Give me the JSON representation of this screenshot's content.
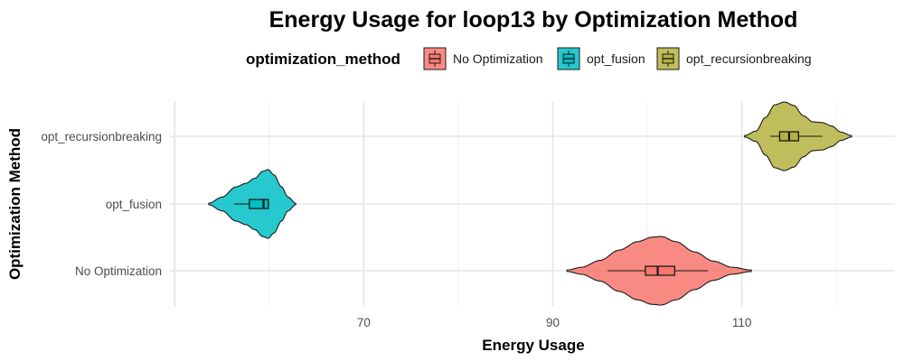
{
  "chart_data": {
    "type": "violin",
    "title": "Energy Usage for loop13 by Optimization Method",
    "xlabel": "Energy Usage",
    "ylabel": "Optimization Method",
    "legend": {
      "title": "optimization_method",
      "position": "top",
      "entries": [
        "No Optimization",
        "opt_fusion",
        "opt_recursionbreaking"
      ]
    },
    "x_ticks": [
      70,
      90,
      110
    ],
    "xlim": [
      49.5,
      126.2
    ],
    "grid": true,
    "categories": [
      "No Optimization",
      "opt_fusion",
      "opt_recursionbreaking"
    ],
    "series": [
      {
        "name": "No Optimization",
        "color": "#F8766D",
        "violin_range": [
          91.5,
          111.0
        ],
        "box": {
          "whisker_low": 95.8,
          "q1": 99.8,
          "median": 101.1,
          "q3": 102.9,
          "whisker_high": 106.4
        },
        "density": [
          [
            91.5,
            0.02
          ],
          [
            93,
            0.1
          ],
          [
            95,
            0.3
          ],
          [
            97,
            0.6
          ],
          [
            99,
            0.85
          ],
          [
            100.5,
            0.98
          ],
          [
            101.5,
            1.0
          ],
          [
            103,
            0.85
          ],
          [
            105,
            0.55
          ],
          [
            107,
            0.28
          ],
          [
            109,
            0.1
          ],
          [
            111,
            0.02
          ]
        ]
      },
      {
        "name": "opt_fusion",
        "color": "#00BFC4",
        "violin_range": [
          53.6,
          62.8
        ],
        "box": {
          "whisker_low": 56.3,
          "q1": 57.9,
          "median": 59.4,
          "q3": 59.9,
          "whisker_high": 60.0
        },
        "density": [
          [
            53.6,
            0.02
          ],
          [
            55,
            0.2
          ],
          [
            56.5,
            0.5
          ],
          [
            57.5,
            0.6
          ],
          [
            58.5,
            0.75
          ],
          [
            59.3,
            0.95
          ],
          [
            59.9,
            1.0
          ],
          [
            60.5,
            0.85
          ],
          [
            61.3,
            0.5
          ],
          [
            62,
            0.2
          ],
          [
            62.8,
            0.02
          ]
        ]
      },
      {
        "name": "opt_recursionbreaking",
        "color": "#B5B140",
        "violin_range": [
          110.3,
          121.6
        ],
        "box": {
          "whisker_low": 113.0,
          "q1": 114.0,
          "median": 115.0,
          "q3": 116.0,
          "whisker_high": 118.5
        },
        "density": [
          [
            110.3,
            0.02
          ],
          [
            111.5,
            0.15
          ],
          [
            112.5,
            0.55
          ],
          [
            113.5,
            0.92
          ],
          [
            114.5,
            1.0
          ],
          [
            115.5,
            0.9
          ],
          [
            116.5,
            0.6
          ],
          [
            117.5,
            0.42
          ],
          [
            118.5,
            0.4
          ],
          [
            119.5,
            0.3
          ],
          [
            120.5,
            0.12
          ],
          [
            121.6,
            0.02
          ]
        ]
      }
    ]
  }
}
